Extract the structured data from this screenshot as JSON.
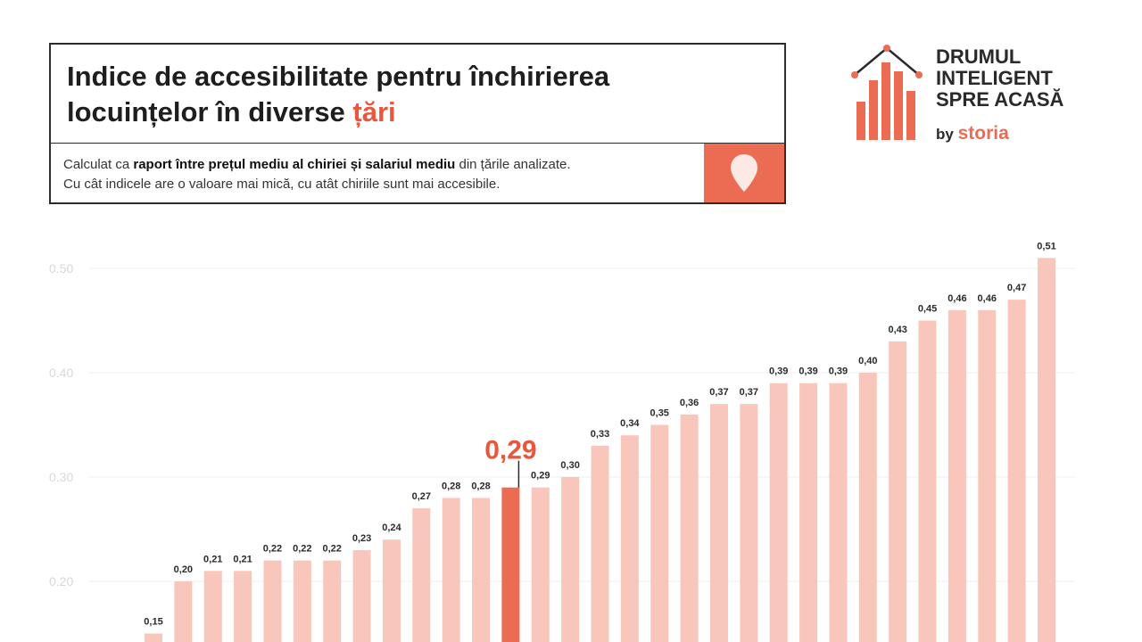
{
  "header": {
    "title_line1": "Indice de accesibilitate pentru închirierea",
    "title_line2_pre": "locuințelor în diverse ",
    "title_line2_accent": "țări",
    "sub_line1_pre": "Calculat ca ",
    "sub_line1_bold": "raport între prețul mediu al chiriei și salariul mediu",
    "sub_line1_post": " din țările analizate.",
    "sub_line2": "Cu cât indicele are o valoare mai mică, cu atât chiriile sunt mai accesibile."
  },
  "logo": {
    "line1": "DRUMUL",
    "line2": "INTELIGENT",
    "line3": "SPRE ACASĂ",
    "by": "by ",
    "brand": "storia",
    "icon": "house-bar-chart-icon"
  },
  "colors": {
    "accent": "#e8573c",
    "bar": "#f9c6bb",
    "bar_highlight": "#ec6b53",
    "pin_box": "#ec6b53"
  },
  "chart_data": {
    "type": "bar",
    "title": "Indice de accesibilitate pentru închirierea locuințelor în diverse țări",
    "ylim": [
      0.15,
      0.54
    ],
    "yticks": [
      "0.20",
      "0.30",
      "0.40",
      "0.50"
    ],
    "ytick_values": [
      0.2,
      0.3,
      0.4,
      0.5
    ],
    "grid": true,
    "highlight_index": 12,
    "values": [
      0.15,
      0.2,
      0.21,
      0.21,
      0.22,
      0.22,
      0.22,
      0.23,
      0.24,
      0.27,
      0.28,
      0.28,
      0.29,
      0.29,
      0.3,
      0.33,
      0.34,
      0.35,
      0.36,
      0.37,
      0.37,
      0.39,
      0.39,
      0.39,
      0.4,
      0.43,
      0.45,
      0.46,
      0.46,
      0.47,
      0.51
    ],
    "labels": [
      "0,15",
      "0,20",
      "0,21",
      "0,21",
      "0,22",
      "0,22",
      "0,22",
      "0,23",
      "0,24",
      "0,27",
      "0,28",
      "0,28",
      "0,29",
      "0,29",
      "0,30",
      "0,33",
      "0,34",
      "0,35",
      "0,36",
      "0,37",
      "0,37",
      "0,39",
      "0,39",
      "0,39",
      "0,40",
      "0,43",
      "0,45",
      "0,46",
      "0,46",
      "0,47",
      "0,51"
    ]
  }
}
